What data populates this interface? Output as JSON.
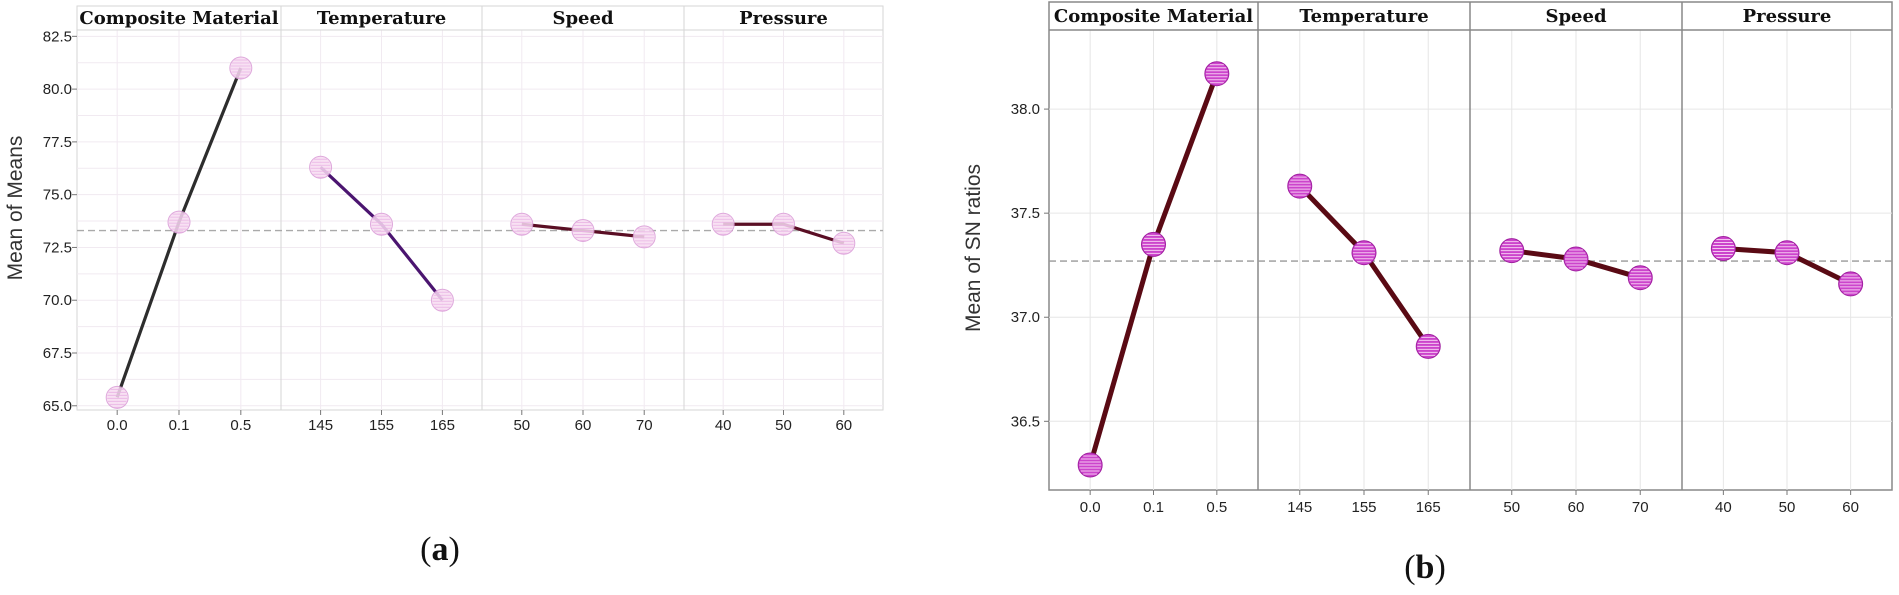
{
  "chart_data": [
    {
      "type": "line",
      "caption": "(a)",
      "caption_letter": "a",
      "ylabel": "Mean of Means",
      "ylim": [
        64.8,
        82.8
      ],
      "yticks": [
        "65.0",
        "67.5",
        "70.0",
        "72.5",
        "75.0",
        "77.5",
        "80.0",
        "82.5"
      ],
      "ytick_values": [
        65.0,
        67.5,
        70.0,
        72.5,
        75.0,
        77.5,
        80.0,
        82.5
      ],
      "reference_line": 73.3,
      "grid": true,
      "colors": {
        "line_first": "#2d2d2d",
        "line_second": "#4b1570",
        "line_other": "#5a0e24",
        "marker_fill": "#f7dcf2",
        "marker_stroke": "#d99ad6",
        "ref": "#aaaaaa",
        "frame": "#d6d6d6"
      },
      "panels": [
        {
          "title": "Composite Material",
          "categories": [
            "0.0",
            "0.1",
            "0.5"
          ],
          "values": [
            65.4,
            73.7,
            81.0
          ]
        },
        {
          "title": "Temperature",
          "categories": [
            "145",
            "155",
            "165"
          ],
          "values": [
            76.3,
            73.6,
            70.0
          ]
        },
        {
          "title": "Speed",
          "categories": [
            "50",
            "60",
            "70"
          ],
          "values": [
            73.6,
            73.3,
            73.0
          ]
        },
        {
          "title": "Pressure",
          "categories": [
            "40",
            "50",
            "60"
          ],
          "values": [
            73.6,
            73.6,
            72.7
          ]
        }
      ]
    },
    {
      "type": "line",
      "caption": "(b)",
      "caption_letter": "b",
      "ylabel": "Mean of SN ratios",
      "ylim": [
        36.17,
        38.38
      ],
      "yticks": [
        "36.5",
        "37.0",
        "37.5",
        "38.0"
      ],
      "ytick_values": [
        36.5,
        37.0,
        37.5,
        38.0
      ],
      "reference_line": 37.27,
      "grid": true,
      "colors": {
        "line_first": "#5a0a14",
        "line_second": "#5a0a14",
        "line_other": "#5a0a14",
        "marker_fill": "#cc44cc",
        "marker_stroke": "#a020a0",
        "ref": "#999999",
        "frame": "#888888"
      },
      "panels": [
        {
          "title": "Composite Material",
          "categories": [
            "0.0",
            "0.1",
            "0.5"
          ],
          "values": [
            36.29,
            37.35,
            38.17
          ]
        },
        {
          "title": "Temperature",
          "categories": [
            "145",
            "155",
            "165"
          ],
          "values": [
            37.63,
            37.31,
            36.86
          ]
        },
        {
          "title": "Speed",
          "categories": [
            "50",
            "60",
            "70"
          ],
          "values": [
            37.32,
            37.28,
            37.19
          ]
        },
        {
          "title": "Pressure",
          "categories": [
            "40",
            "50",
            "60"
          ],
          "values": [
            37.33,
            37.31,
            37.16
          ]
        }
      ]
    }
  ]
}
